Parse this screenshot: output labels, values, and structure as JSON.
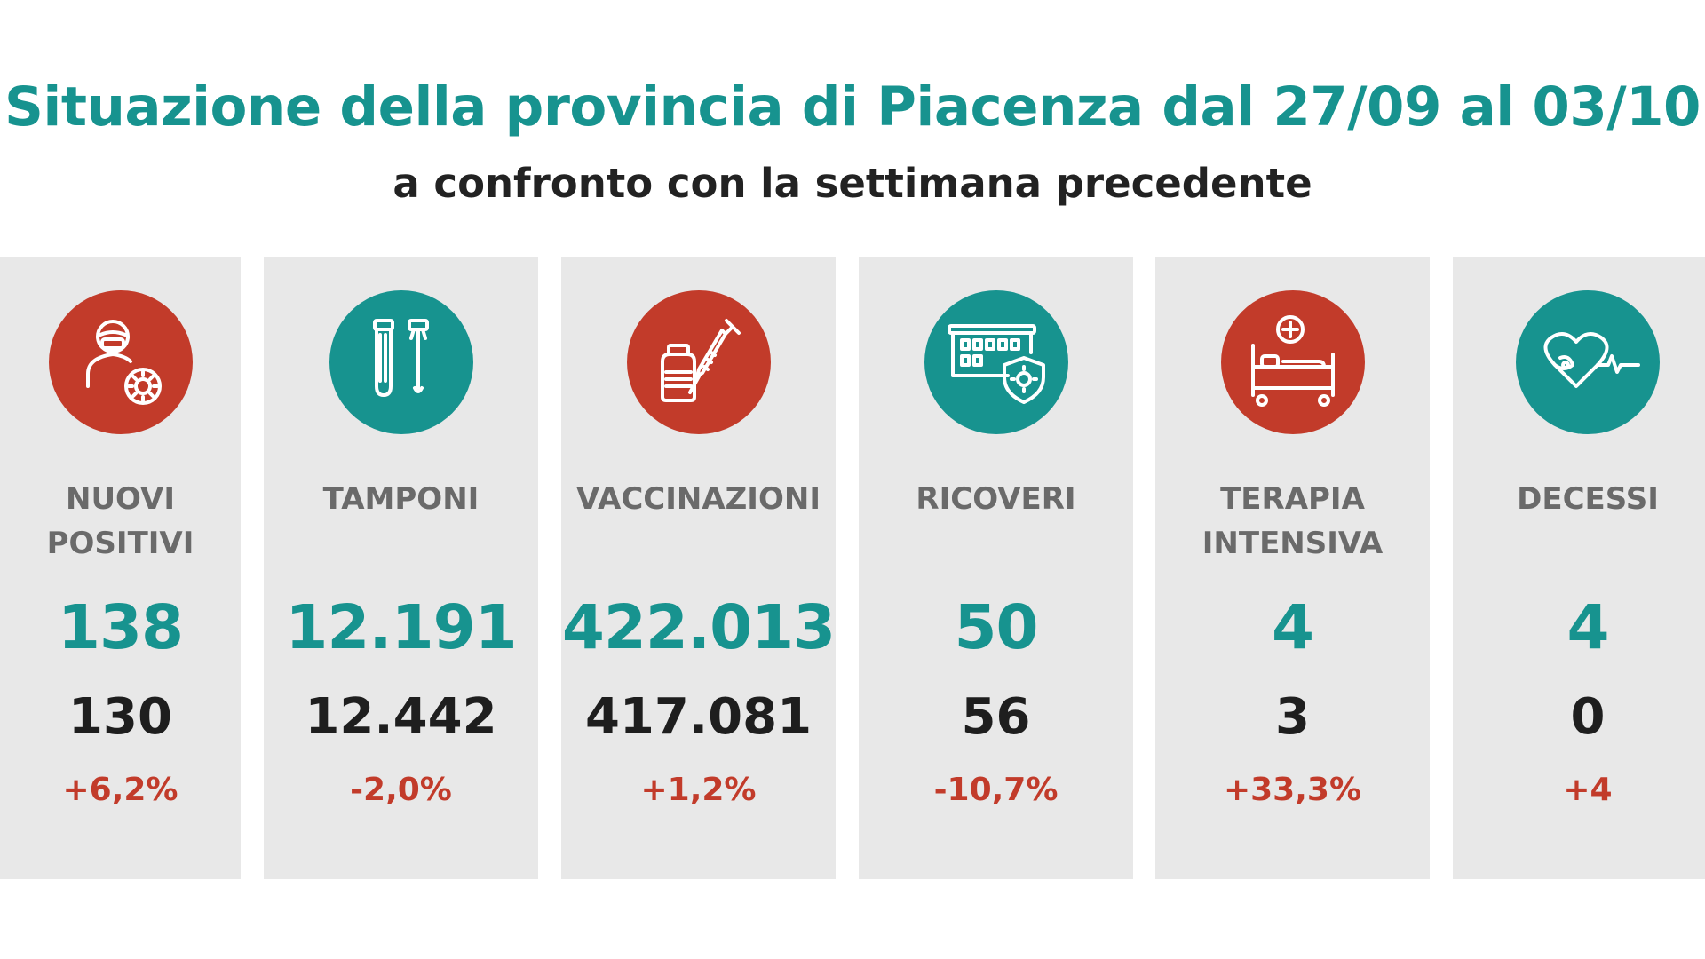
{
  "header": {
    "title": "Situazione della provincia di Piacenza dal 27/09 al 03/10",
    "subtitle": "a confronto con la settimana precedente"
  },
  "colors": {
    "teal": "#17938f",
    "red": "#c23b2a",
    "card_bg": "#e8e8e8",
    "label_gray": "#6a6a6a"
  },
  "cards": [
    {
      "label": "NUOVI\nPOSITIVI",
      "current": "138",
      "previous": "130",
      "delta": "+6,2%",
      "icon": "patient-virus-icon",
      "icon_color": "red"
    },
    {
      "label": "TAMPONI",
      "current": "12.191",
      "previous": "12.442",
      "delta": "-2,0%",
      "icon": "swab-test-tube-icon",
      "icon_color": "teal"
    },
    {
      "label": "VACCINAZIONI",
      "current": "422.013",
      "previous": "417.081",
      "delta": "+1,2%",
      "icon": "vaccine-syringe-icon",
      "icon_color": "red"
    },
    {
      "label": "RICOVERI",
      "current": "50",
      "previous": "56",
      "delta": "-10,7%",
      "icon": "hospital-shield-icon",
      "icon_color": "teal"
    },
    {
      "label": "TERAPIA\nINTENSIVA",
      "current": "4",
      "previous": "3",
      "delta": "+33,3%",
      "icon": "hospital-bed-icon",
      "icon_color": "red"
    },
    {
      "label": "DECESSI",
      "current": "4",
      "previous": "0",
      "delta": "+4",
      "icon": "heart-pulse-icon",
      "icon_color": "teal"
    }
  ]
}
